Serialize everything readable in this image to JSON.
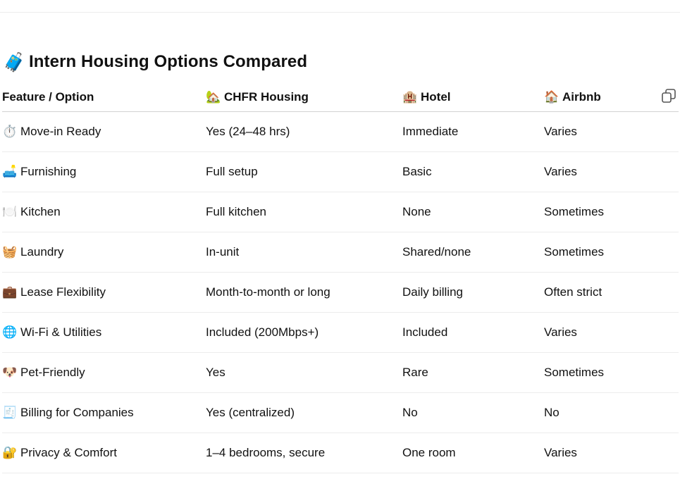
{
  "title": {
    "icon": "luggage-icon",
    "emoji": "🧳",
    "text": "Intern Housing Options Compared"
  },
  "table": {
    "headers": [
      {
        "emoji": "",
        "icon": "",
        "label": "Feature / Option"
      },
      {
        "emoji": "🏡",
        "icon": "house-with-garden-icon",
        "label": "CHFR Housing"
      },
      {
        "emoji": "🏨",
        "icon": "hotel-icon",
        "label": "Hotel"
      },
      {
        "emoji": "🏠",
        "icon": "house-icon",
        "label": "Airbnb"
      }
    ],
    "copy_icon": "copy-icon",
    "rows": [
      {
        "emoji": "⏱️",
        "icon": "stopwatch-icon",
        "feature": "Move-in Ready",
        "chfr": "Yes (24–48 hrs)",
        "hotel": "Immediate",
        "airbnb": "Varies"
      },
      {
        "emoji": "🛋️",
        "icon": "couch-icon",
        "feature": "Furnishing",
        "chfr": "Full setup",
        "hotel": "Basic",
        "airbnb": "Varies"
      },
      {
        "emoji": "🍽️",
        "icon": "plate-cutlery-icon",
        "feature": "Kitchen",
        "chfr": "Full kitchen",
        "hotel": "None",
        "airbnb": "Sometimes"
      },
      {
        "emoji": "🧺",
        "icon": "basket-icon",
        "feature": "Laundry",
        "chfr": "In-unit",
        "hotel": "Shared/none",
        "airbnb": "Sometimes"
      },
      {
        "emoji": "💼",
        "icon": "briefcase-icon",
        "feature": "Lease Flexibility",
        "chfr": "Month-to-month or long",
        "hotel": "Daily billing",
        "airbnb": "Often strict"
      },
      {
        "emoji": "🌐",
        "icon": "globe-icon",
        "feature": "Wi-Fi & Utilities",
        "chfr": "Included (200Mbps+)",
        "hotel": "Included",
        "airbnb": "Varies"
      },
      {
        "emoji": "🐶",
        "icon": "dog-icon",
        "feature": "Pet-Friendly",
        "chfr": "Yes",
        "hotel": "Rare",
        "airbnb": "Sometimes"
      },
      {
        "emoji": "🧾",
        "icon": "receipt-icon",
        "feature": "Billing for Companies",
        "chfr": "Yes (centralized)",
        "hotel": "No",
        "airbnb": "No"
      },
      {
        "emoji": "🔐",
        "icon": "lock-with-key-icon",
        "feature": "Privacy & Comfort",
        "chfr": "1–4 bedrooms, secure",
        "hotel": "One room",
        "airbnb": "Varies"
      }
    ]
  }
}
